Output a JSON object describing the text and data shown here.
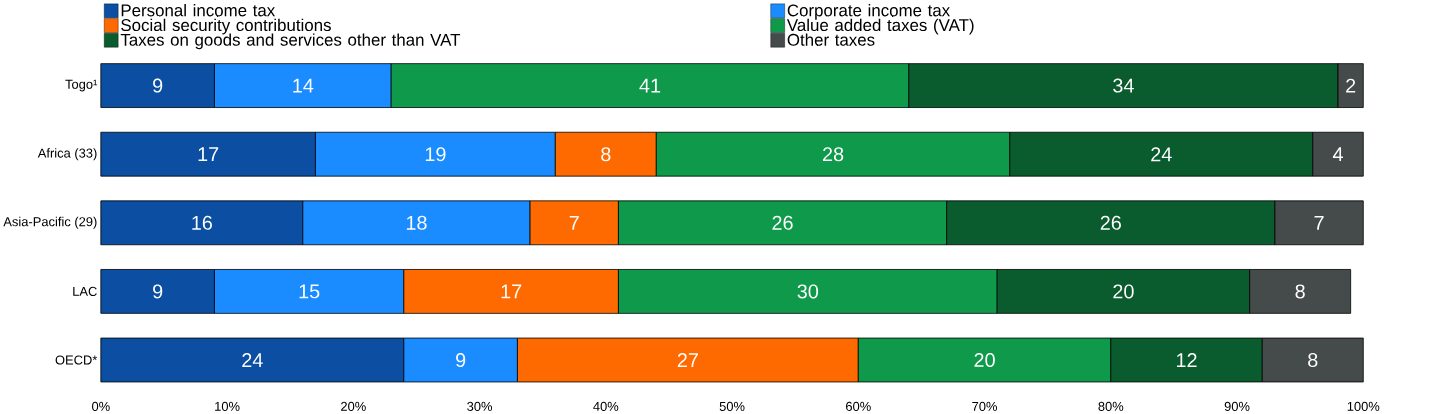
{
  "chart_data": {
    "type": "bar",
    "orientation": "horizontal",
    "stacked": true,
    "data_labels": true,
    "legend": "top",
    "grid": false,
    "categories": [
      "Togo¹",
      "Africa (33)",
      "Asia-Pacific (29)",
      "LAC",
      "OECD*"
    ],
    "series": [
      {
        "name": "Personal income tax",
        "color": "#0b4ea2",
        "values": [
          9,
          17,
          16,
          9,
          24
        ]
      },
      {
        "name": "Corporate income tax",
        "color": "#1a8cff",
        "values": [
          14,
          19,
          18,
          15,
          9
        ]
      },
      {
        "name": "Social security contributions",
        "color": "#ff6a00",
        "values": [
          null,
          8,
          7,
          17,
          27
        ]
      },
      {
        "name": "Value added taxes (VAT)",
        "color": "#0f9a4b",
        "values": [
          41,
          28,
          26,
          30,
          20
        ]
      },
      {
        "name": "Taxes on goods and services other than VAT",
        "color": "#0a5c2e",
        "values": [
          34,
          24,
          26,
          20,
          12
        ]
      },
      {
        "name": "Other taxes",
        "color": "#454a4a",
        "values": [
          2,
          4,
          7,
          8,
          8
        ]
      }
    ],
    "xlim": [
      0,
      100
    ],
    "xticks": [
      {
        "value": 0,
        "label": "0%"
      },
      {
        "value": 10,
        "label": "10%"
      },
      {
        "value": 20,
        "label": "20%"
      },
      {
        "value": 30,
        "label": "30%"
      },
      {
        "value": 40,
        "label": "40%"
      },
      {
        "value": 50,
        "label": "50%"
      },
      {
        "value": 60,
        "label": "60%"
      },
      {
        "value": 70,
        "label": "70%"
      },
      {
        "value": 80,
        "label": "80%"
      },
      {
        "value": 90,
        "label": "90%"
      },
      {
        "value": 100,
        "label": "100%"
      }
    ]
  }
}
